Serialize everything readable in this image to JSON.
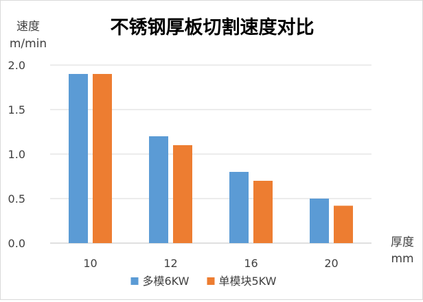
{
  "chart_data": {
    "type": "bar",
    "title": "不锈钢厚板切割速度对比",
    "ylabel_line1": "速度",
    "ylabel_line2": "m/min",
    "xlabel_line1": "厚度",
    "xlabel_line2": "mm",
    "categories": [
      "10",
      "12",
      "16",
      "20"
    ],
    "ylim": [
      0,
      2.0
    ],
    "yticks": [
      "0.0",
      "0.5",
      "1.0",
      "1.5",
      "2.0"
    ],
    "grid": true,
    "legend_position": "bottom",
    "series": [
      {
        "name": "多模6KW",
        "color": "#5b9bd5",
        "values": [
          1.9,
          1.2,
          0.8,
          0.5
        ]
      },
      {
        "name": "单模块5KW",
        "color": "#ed7d31",
        "values": [
          1.9,
          1.1,
          0.7,
          0.42
        ]
      }
    ]
  }
}
